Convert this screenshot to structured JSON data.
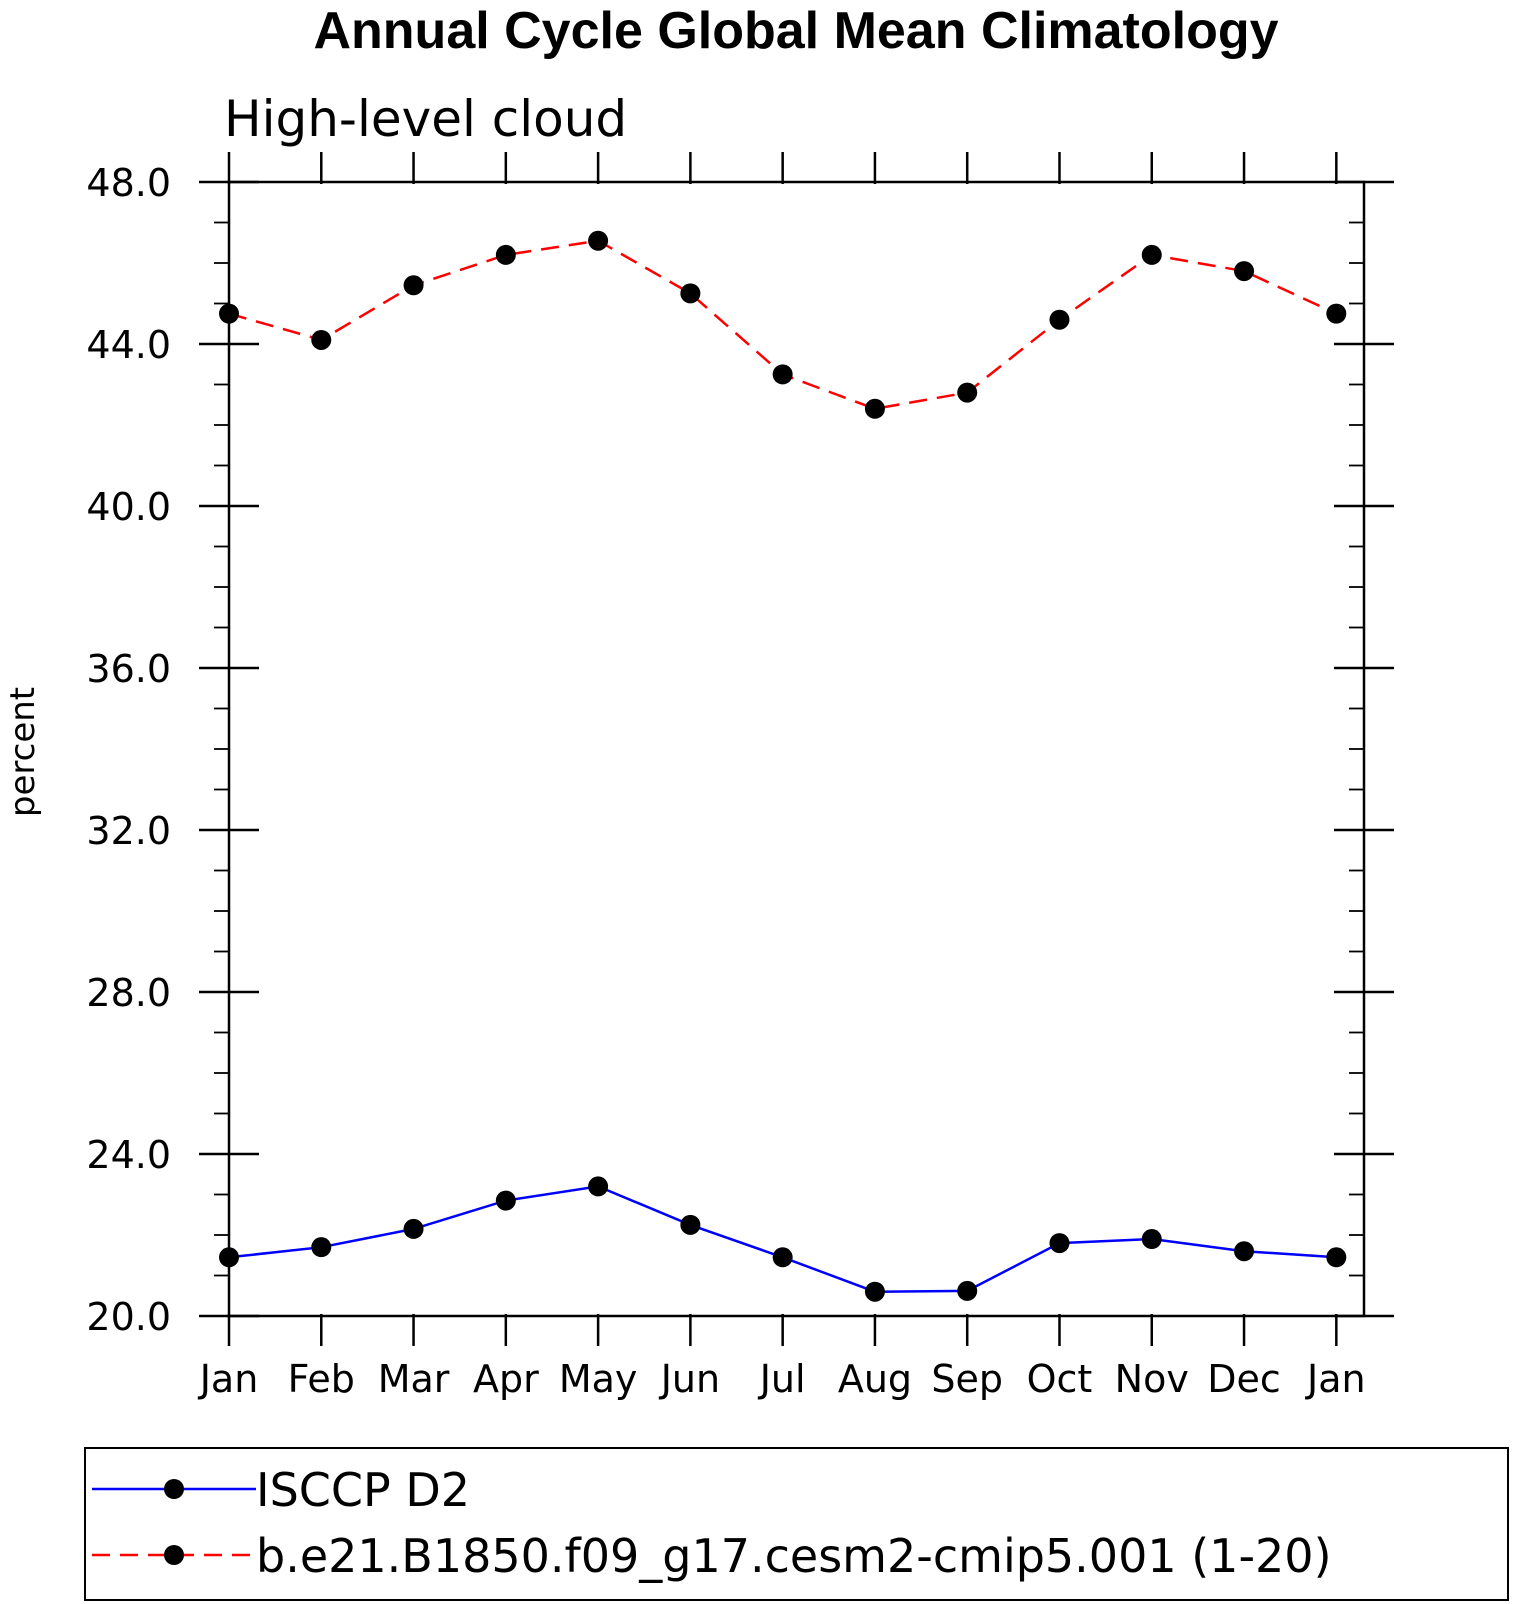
{
  "chart_data": {
    "type": "line",
    "title": "Annual Cycle Global Mean Climatology",
    "subtitle": "High-level cloud",
    "xlabel": "",
    "ylabel": "percent",
    "categories": [
      "Jan",
      "Feb",
      "Mar",
      "Apr",
      "May",
      "Jun",
      "Jul",
      "Aug",
      "Sep",
      "Oct",
      "Nov",
      "Dec",
      "Jan"
    ],
    "ylim": [
      20.0,
      48.0
    ],
    "yticks": [
      "20.0",
      "24.0",
      "28.0",
      "32.0",
      "36.0",
      "40.0",
      "44.0",
      "48.0"
    ],
    "ytick_values": [
      20,
      24,
      28,
      32,
      36,
      40,
      44,
      48
    ],
    "minor_step": 1,
    "grid": false,
    "legend_position": "bottom",
    "series": [
      {
        "name": "ISCCP D2",
        "color": "#0000ff",
        "line_style": "solid",
        "marker": "filled-circle",
        "values": [
          21.45,
          21.7,
          22.15,
          22.85,
          23.2,
          22.25,
          21.45,
          20.6,
          20.62,
          21.8,
          21.9,
          21.6,
          21.45
        ]
      },
      {
        "name": "b.e21.B1850.f09_g17.cesm2-cmip5.001 (1-20)",
        "color": "#ff0000",
        "line_style": "dashed",
        "marker": "filled-circle",
        "values": [
          44.75,
          44.1,
          45.45,
          46.2,
          46.55,
          45.25,
          43.25,
          42.4,
          42.8,
          44.6,
          46.2,
          45.8,
          44.75
        ]
      }
    ]
  }
}
